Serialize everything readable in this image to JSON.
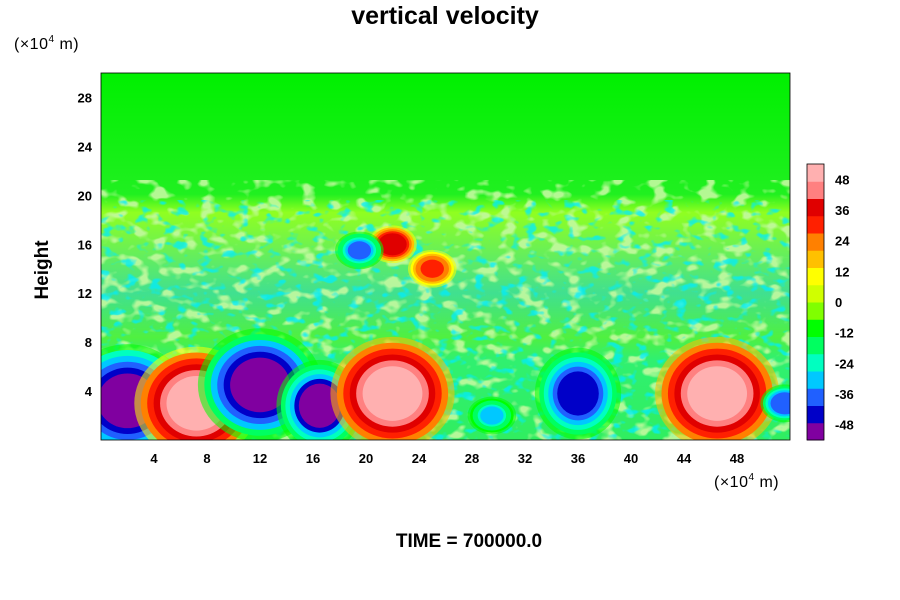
{
  "chart_data": {
    "type": "heatmap",
    "title": "vertical velocity",
    "ylabel": "Height",
    "xlabel": "",
    "x_unit": {
      "prefix": "(×10",
      "exp": "4",
      "suffix": " m)"
    },
    "y_unit": {
      "prefix": "(×10",
      "exp": "4",
      "suffix": " m)"
    },
    "xlim": [
      0,
      52
    ],
    "ylim": [
      0,
      30
    ],
    "xticks": [
      4,
      8,
      12,
      16,
      20,
      24,
      28,
      32,
      36,
      40,
      44,
      48
    ],
    "yticks": [
      4,
      8,
      12,
      16,
      20,
      24,
      28
    ],
    "colorbar": {
      "ticks": [
        48,
        36,
        24,
        12,
        0,
        -12,
        -24,
        -36,
        -48
      ],
      "range": [
        -54,
        54
      ],
      "colors": [
        "#8000a0",
        "#0000c8",
        "#2060ff",
        "#00c8ff",
        "#00ffc0",
        "#00ff60",
        "#00ff00",
        "#80ff00",
        "#d0ff00",
        "#ffff00",
        "#ffc000",
        "#ff8000",
        "#ff2000",
        "#e00000",
        "#ff8080",
        "#ffb0b0"
      ]
    },
    "features": [
      {
        "x": 2.0,
        "y": 3.2,
        "w": -52,
        "note": "downdraft"
      },
      {
        "x": 7.2,
        "y": 3.0,
        "w": 52,
        "note": "updraft"
      },
      {
        "x": 12.0,
        "y": 4.5,
        "w": -50,
        "note": "downdraft"
      },
      {
        "x": 16.5,
        "y": 2.8,
        "w": -48,
        "note": "downdraft"
      },
      {
        "x": 22.0,
        "y": 3.8,
        "w": 54,
        "note": "updraft"
      },
      {
        "x": 29.5,
        "y": 2.0,
        "w": -28,
        "note": "downdraft"
      },
      {
        "x": 36.0,
        "y": 3.8,
        "w": -46,
        "note": "downdraft"
      },
      {
        "x": 46.5,
        "y": 3.8,
        "w": 54,
        "note": "updraft"
      },
      {
        "x": 51.6,
        "y": 3.0,
        "w": -40,
        "note": "downdraft"
      },
      {
        "x": 22.0,
        "y": 16.0,
        "w": 40,
        "note": "upper updraft"
      },
      {
        "x": 19.5,
        "y": 15.5,
        "w": -36,
        "note": "upper downdraft"
      },
      {
        "x": 25.0,
        "y": 14.0,
        "w": 30,
        "note": "upper updraft"
      }
    ]
  },
  "time_label": "TIME = 700000.0"
}
